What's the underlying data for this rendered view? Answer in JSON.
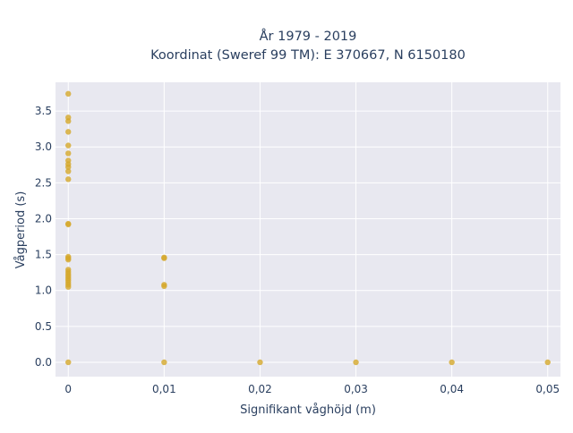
{
  "chart_data": {
    "type": "scatter",
    "title_lines": [
      "År 1979 - 2019",
      "Koordinat (Sweref 99 TM): E 370667, N 6150180"
    ],
    "xlabel": "Signifikant våghöjd (m)",
    "ylabel": "Vågperiod (s)",
    "x_ticks": [
      {
        "value": 0,
        "label": "0"
      },
      {
        "value": 0.01,
        "label": "0,01"
      },
      {
        "value": 0.02,
        "label": "0,02"
      },
      {
        "value": 0.03,
        "label": "0,03"
      },
      {
        "value": 0.04,
        "label": "0,04"
      },
      {
        "value": 0.05,
        "label": "0,05"
      }
    ],
    "y_ticks": [
      {
        "value": 0,
        "label": "0.0"
      },
      {
        "value": 0.5,
        "label": "0.5"
      },
      {
        "value": 1.0,
        "label": "1.0"
      },
      {
        "value": 1.5,
        "label": "1.5"
      },
      {
        "value": 2.0,
        "label": "2.0"
      },
      {
        "value": 2.5,
        "label": "2.5"
      },
      {
        "value": 3.0,
        "label": "3.0"
      },
      {
        "value": 3.5,
        "label": "3.5"
      }
    ],
    "xlim": [
      -0.00133,
      0.05133
    ],
    "ylim": [
      -0.2,
      3.9
    ],
    "grid": true,
    "colors": {
      "marker": "#d4a82a",
      "plot_bg": "#e8e8f0",
      "grid": "#ffffff"
    },
    "points": [
      {
        "x": 0,
        "y": 3.74
      },
      {
        "x": 0,
        "y": 3.41
      },
      {
        "x": 0,
        "y": 3.36
      },
      {
        "x": 0,
        "y": 3.21
      },
      {
        "x": 0,
        "y": 3.02
      },
      {
        "x": 0,
        "y": 2.91
      },
      {
        "x": 0,
        "y": 2.81
      },
      {
        "x": 0,
        "y": 2.76
      },
      {
        "x": 0,
        "y": 2.72
      },
      {
        "x": 0,
        "y": 2.66
      },
      {
        "x": 0,
        "y": 2.55
      },
      {
        "x": 0,
        "y": 1.93
      },
      {
        "x": 0,
        "y": 1.92
      },
      {
        "x": 0,
        "y": 1.47
      },
      {
        "x": 0,
        "y": 1.45
      },
      {
        "x": 0,
        "y": 1.43
      },
      {
        "x": 0,
        "y": 1.29
      },
      {
        "x": 0,
        "y": 1.26
      },
      {
        "x": 0,
        "y": 1.23
      },
      {
        "x": 0,
        "y": 1.2
      },
      {
        "x": 0,
        "y": 1.17
      },
      {
        "x": 0,
        "y": 1.14
      },
      {
        "x": 0,
        "y": 1.11
      },
      {
        "x": 0,
        "y": 1.08
      },
      {
        "x": 0,
        "y": 1.05
      },
      {
        "x": 0,
        "y": 0.0
      },
      {
        "x": 0.01,
        "y": 1.46
      },
      {
        "x": 0.01,
        "y": 1.45
      },
      {
        "x": 0.01,
        "y": 1.08
      },
      {
        "x": 0.01,
        "y": 1.06
      },
      {
        "x": 0.01,
        "y": 0.0
      },
      {
        "x": 0.02,
        "y": 0.0
      },
      {
        "x": 0.03,
        "y": 0.0
      },
      {
        "x": 0.04,
        "y": 0.0
      },
      {
        "x": 0.05,
        "y": 0.0
      }
    ]
  }
}
